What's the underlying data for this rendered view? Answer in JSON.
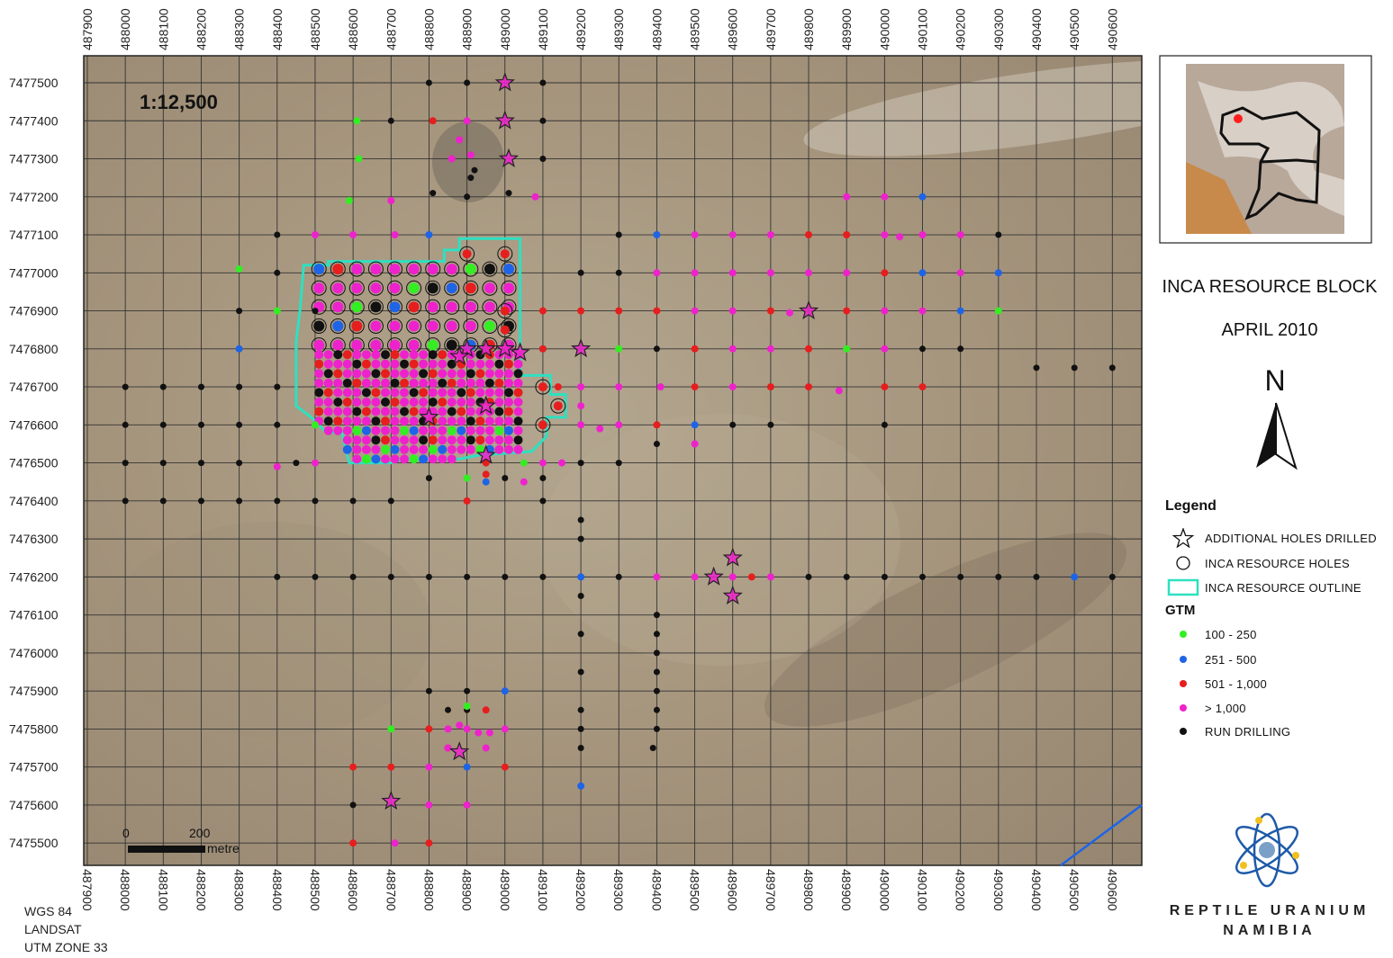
{
  "map": {
    "scale_ratio": "1:12,500",
    "x_ticks": [
      "487900",
      "488000",
      "488100",
      "488200",
      "488300",
      "488400",
      "488500",
      "488600",
      "488700",
      "488800",
      "488900",
      "489000",
      "489100",
      "489200",
      "489300",
      "489400",
      "489500",
      "489600",
      "489700",
      "489800",
      "489900",
      "490000",
      "490100",
      "490200",
      "490300",
      "490400",
      "490500",
      "490600"
    ],
    "y_ticks": [
      "7477500",
      "7477400",
      "7477300",
      "7477200",
      "7477100",
      "7477000",
      "7476900",
      "7476800",
      "7476700",
      "7476600",
      "7476500",
      "7476400",
      "7476300",
      "7476200",
      "7476100",
      "7476000",
      "7475900",
      "7475800",
      "7475700",
      "7475600",
      "7475500"
    ],
    "scale_bar": {
      "start_label": "0",
      "end_label": "200",
      "unit": "metre"
    },
    "colors": {
      "background": "#aa9a82",
      "grid": "#333333",
      "outline": "#2ee0c0",
      "gtm_100_250": "#33ee22",
      "gtm_251_500": "#1e64e6",
      "gtm_501_1000": "#e61e1e",
      "gtm_gt_1000": "#ee22cc",
      "run_drilling": "#111111"
    },
    "outline_vertices_utm": [
      [
        488470,
        7477020
      ],
      [
        488535,
        7477020
      ],
      [
        488535,
        7477030
      ],
      [
        488840,
        7477030
      ],
      [
        488840,
        7477060
      ],
      [
        488880,
        7477060
      ],
      [
        488880,
        7477090
      ],
      [
        489040,
        7477090
      ],
      [
        489040,
        7476730
      ],
      [
        489120,
        7476730
      ],
      [
        489120,
        7476680
      ],
      [
        489160,
        7476680
      ],
      [
        489160,
        7476620
      ],
      [
        489110,
        7476620
      ],
      [
        489110,
        7476570
      ],
      [
        489070,
        7476530
      ],
      [
        488930,
        7476520
      ],
      [
        488880,
        7476510
      ],
      [
        488730,
        7476510
      ],
      [
        488700,
        7476500
      ],
      [
        488590,
        7476500
      ],
      [
        488570,
        7476580
      ],
      [
        488530,
        7476580
      ],
      [
        488490,
        7476620
      ],
      [
        488450,
        7476650
      ],
      [
        488450,
        7476720
      ],
      [
        488450,
        7476820
      ],
      [
        488460,
        7476900
      ],
      [
        488470,
        7477020
      ]
    ],
    "resource_block": {
      "x_min": 488510,
      "x_max": 489050,
      "y_min": 7476500,
      "y_max": 7477010,
      "spacing": 25
    },
    "run_drilling_points": [
      [
        488000,
        7476700
      ],
      [
        488100,
        7476700
      ],
      [
        488200,
        7476700
      ],
      [
        488300,
        7476700
      ],
      [
        488400,
        7476700
      ],
      [
        488000,
        7476600
      ],
      [
        488100,
        7476600
      ],
      [
        488200,
        7476600
      ],
      [
        488300,
        7476600
      ],
      [
        488400,
        7476600
      ],
      [
        488500,
        7476600
      ],
      [
        488000,
        7476500
      ],
      [
        488100,
        7476500
      ],
      [
        488200,
        7476500
      ],
      [
        488300,
        7476500
      ],
      [
        488450,
        7476500
      ],
      [
        488500,
        7476500
      ],
      [
        488000,
        7476400
      ],
      [
        488100,
        7476400
      ],
      [
        488200,
        7476400
      ],
      [
        488300,
        7476400
      ],
      [
        488400,
        7476400
      ],
      [
        488500,
        7476400
      ],
      [
        488600,
        7476400
      ],
      [
        488700,
        7476400
      ],
      [
        488800,
        7476460
      ],
      [
        488900,
        7476460
      ],
      [
        489000,
        7476460
      ],
      [
        489100,
        7476460
      ],
      [
        489100,
        7476400
      ],
      [
        488800,
        7477500
      ],
      [
        488900,
        7477500
      ],
      [
        489100,
        7477500
      ],
      [
        488700,
        7477400
      ],
      [
        489100,
        7477400
      ],
      [
        489100,
        7477300
      ],
      [
        488810,
        7477210
      ],
      [
        488900,
        7477200
      ],
      [
        489010,
        7477210
      ],
      [
        488910,
        7477250
      ],
      [
        488920,
        7477270
      ],
      [
        488400,
        7477100
      ],
      [
        488400,
        7477000
      ],
      [
        488300,
        7476900
      ],
      [
        488500,
        7476900
      ],
      [
        489200,
        7477000
      ],
      [
        489300,
        7477000
      ],
      [
        489300,
        7477100
      ],
      [
        490300,
        7477100
      ],
      [
        489400,
        7476800
      ],
      [
        489600,
        7476600
      ],
      [
        489700,
        7476600
      ],
      [
        490000,
        7476600
      ],
      [
        490100,
        7476800
      ],
      [
        490200,
        7476800
      ],
      [
        490400,
        7476750
      ],
      [
        490500,
        7476750
      ],
      [
        490600,
        7476750
      ],
      [
        489400,
        7476550
      ],
      [
        489200,
        7476500
      ],
      [
        489300,
        7476500
      ],
      [
        489200,
        7476350
      ],
      [
        489200,
        7476300
      ],
      [
        489200,
        7476150
      ],
      [
        489200,
        7476050
      ],
      [
        489200,
        7475950
      ],
      [
        489200,
        7475850
      ],
      [
        489200,
        7475800
      ],
      [
        489200,
        7475750
      ],
      [
        489400,
        7476100
      ],
      [
        489400,
        7476050
      ],
      [
        489400,
        7476000
      ],
      [
        489400,
        7475950
      ],
      [
        489400,
        7475900
      ],
      [
        489400,
        7475850
      ],
      [
        489400,
        7475800
      ],
      [
        489390,
        7475750
      ],
      [
        488400,
        7476200
      ],
      [
        488500,
        7476200
      ],
      [
        488600,
        7476200
      ],
      [
        488700,
        7476200
      ],
      [
        488800,
        7476200
      ],
      [
        488900,
        7476200
      ],
      [
        489000,
        7476200
      ],
      [
        489100,
        7476200
      ],
      [
        489300,
        7476200
      ],
      [
        489400,
        7476200
      ],
      [
        489700,
        7476200
      ],
      [
        489800,
        7476200
      ],
      [
        489900,
        7476200
      ],
      [
        490000,
        7476200
      ],
      [
        490100,
        7476200
      ],
      [
        490200,
        7476200
      ],
      [
        490300,
        7476200
      ],
      [
        490400,
        7476200
      ],
      [
        490600,
        7476200
      ],
      [
        488850,
        7475850
      ],
      [
        488900,
        7475900
      ],
      [
        488800,
        7475900
      ],
      [
        488900,
        7475850
      ],
      [
        488600,
        7475600
      ]
    ],
    "gtm_100_250_points": [
      [
        488610,
        7477400
      ],
      [
        488615,
        7477300
      ],
      [
        488590,
        7477190
      ],
      [
        488300,
        7477010
      ],
      [
        488400,
        7476900
      ],
      [
        489300,
        7476800
      ],
      [
        489900,
        7476800
      ],
      [
        490300,
        7476900
      ],
      [
        488900,
        7476460
      ],
      [
        489050,
        7476500
      ],
      [
        488700,
        7475800
      ],
      [
        488900,
        7475860
      ],
      [
        488500,
        7476600
      ]
    ],
    "gtm_251_500_points": [
      [
        488800,
        7477100
      ],
      [
        489400,
        7477100
      ],
      [
        490100,
        7477200
      ],
      [
        490100,
        7477000
      ],
      [
        490300,
        7477000
      ],
      [
        490200,
        7476900
      ],
      [
        488300,
        7476800
      ],
      [
        489500,
        7476600
      ],
      [
        489200,
        7476200
      ],
      [
        490500,
        7476200
      ],
      [
        489200,
        7475650
      ],
      [
        489000,
        7475900
      ],
      [
        488900,
        7475700
      ],
      [
        488950,
        7476450
      ],
      [
        489100,
        7476800
      ]
    ],
    "gtm_501_1000_points": [
      [
        488810,
        7477400
      ],
      [
        489100,
        7476900
      ],
      [
        489200,
        7476900
      ],
      [
        489300,
        7476900
      ],
      [
        489400,
        7476900
      ],
      [
        489700,
        7476900
      ],
      [
        489900,
        7476900
      ],
      [
        489500,
        7476800
      ],
      [
        489800,
        7476800
      ],
      [
        489500,
        7476700
      ],
      [
        489700,
        7476700
      ],
      [
        489800,
        7476700
      ],
      [
        490000,
        7476700
      ],
      [
        490100,
        7476700
      ],
      [
        489100,
        7476800
      ],
      [
        489400,
        7476600
      ],
      [
        489800,
        7477100
      ],
      [
        489900,
        7477100
      ],
      [
        490000,
        7477000
      ],
      [
        488900,
        7476400
      ],
      [
        488950,
        7476470
      ],
      [
        488950,
        7476500
      ],
      [
        488800,
        7475800
      ],
      [
        488850,
        7475750
      ],
      [
        488950,
        7475850
      ],
      [
        488600,
        7475700
      ],
      [
        488700,
        7475700
      ],
      [
        489000,
        7475700
      ],
      [
        488600,
        7475500
      ],
      [
        488800,
        7475500
      ],
      [
        489650,
        7476200
      ],
      [
        489140,
        7476700
      ]
    ],
    "gtm_gt_1000_points": [
      [
        488900,
        7477400
      ],
      [
        488880,
        7477350
      ],
      [
        488860,
        7477300
      ],
      [
        488910,
        7477310
      ],
      [
        488700,
        7477190
      ],
      [
        488500,
        7477100
      ],
      [
        488600,
        7477100
      ],
      [
        488710,
        7477100
      ],
      [
        489080,
        7477200
      ],
      [
        489900,
        7477200
      ],
      [
        490000,
        7477200
      ],
      [
        489500,
        7477100
      ],
      [
        489600,
        7477100
      ],
      [
        489700,
        7477100
      ],
      [
        490000,
        7477100
      ],
      [
        490040,
        7477095
      ],
      [
        490100,
        7477100
      ],
      [
        490200,
        7477100
      ],
      [
        489400,
        7477000
      ],
      [
        489500,
        7477000
      ],
      [
        489600,
        7477000
      ],
      [
        489700,
        7477000
      ],
      [
        489800,
        7477000
      ],
      [
        489900,
        7477000
      ],
      [
        490200,
        7477000
      ],
      [
        489500,
        7476900
      ],
      [
        489600,
        7476900
      ],
      [
        489750,
        7476895
      ],
      [
        490000,
        7476900
      ],
      [
        490100,
        7476900
      ],
      [
        489600,
        7476800
      ],
      [
        489700,
        7476800
      ],
      [
        490000,
        7476800
      ],
      [
        489200,
        7476700
      ],
      [
        489300,
        7476700
      ],
      [
        489410,
        7476700
      ],
      [
        489600,
        7476700
      ],
      [
        489880,
        7476690
      ],
      [
        489200,
        7476650
      ],
      [
        489200,
        7476600
      ],
      [
        489250,
        7476590
      ],
      [
        489300,
        7476600
      ],
      [
        489500,
        7476550
      ],
      [
        489100,
        7476500
      ],
      [
        489150,
        7476500
      ],
      [
        489050,
        7476450
      ],
      [
        488400,
        7476490
      ],
      [
        488500,
        7476500
      ],
      [
        489400,
        7476200
      ],
      [
        489500,
        7476200
      ],
      [
        489600,
        7476200
      ],
      [
        489700,
        7476200
      ],
      [
        488850,
        7475800
      ],
      [
        488880,
        7475810
      ],
      [
        488900,
        7475800
      ],
      [
        488930,
        7475790
      ],
      [
        488960,
        7475790
      ],
      [
        489000,
        7475800
      ],
      [
        488850,
        7475750
      ],
      [
        488950,
        7475750
      ],
      [
        488800,
        7475700
      ],
      [
        488800,
        7475600
      ],
      [
        488900,
        7475600
      ],
      [
        488710,
        7475500
      ]
    ],
    "additional_holes_drilled": [
      [
        489000,
        7477500
      ],
      [
        489000,
        7477400
      ],
      [
        489010,
        7477300
      ],
      [
        488900,
        7476800
      ],
      [
        488950,
        7476800
      ],
      [
        489000,
        7476800
      ],
      [
        489040,
        7476790
      ],
      [
        489200,
        7476800
      ],
      [
        489800,
        7476900
      ],
      [
        488880,
        7476780
      ],
      [
        489600,
        7476250
      ],
      [
        489550,
        7476200
      ],
      [
        489600,
        7476150
      ],
      [
        488880,
        7475740
      ],
      [
        488700,
        7475610
      ],
      [
        488950,
        7476650
      ],
      [
        488800,
        7476620
      ],
      [
        488950,
        7476520
      ]
    ],
    "resource_holes_extra": [
      [
        488900,
        7477050
      ],
      [
        489000,
        7477050
      ],
      [
        489000,
        7476900
      ],
      [
        489000,
        7476850
      ],
      [
        489100,
        7476700
      ],
      [
        489100,
        7476600
      ],
      [
        489140,
        7476650
      ]
    ],
    "inset_colors": {
      "land": "#b8a89a",
      "sand": "#c88a4a",
      "marker": "#ff1e1e"
    }
  },
  "sidebar": {
    "title_line1": "INCA RESOURCE BLOCK",
    "title_line2": "APRIL 2010",
    "north_label": "N",
    "legend_title": "Legend",
    "legend_items": [
      "ADDITIONAL  HOLES  DRILLED",
      "INCA RESOURCE  HOLES",
      "INCA RESOURCE  OUTLINE"
    ],
    "gtm_title": "GTM",
    "gtm_items": [
      "100 - 250",
      "251 - 500",
      "501 - 1,000",
      "> 1,000",
      "RUN DRILLING"
    ],
    "company_line1": "REPTILE URANIUM",
    "company_line2": "NAMIBIA"
  },
  "crs": {
    "line1": "WGS 84",
    "line2": "LANDSAT",
    "line3": "UTM ZONE 33"
  }
}
